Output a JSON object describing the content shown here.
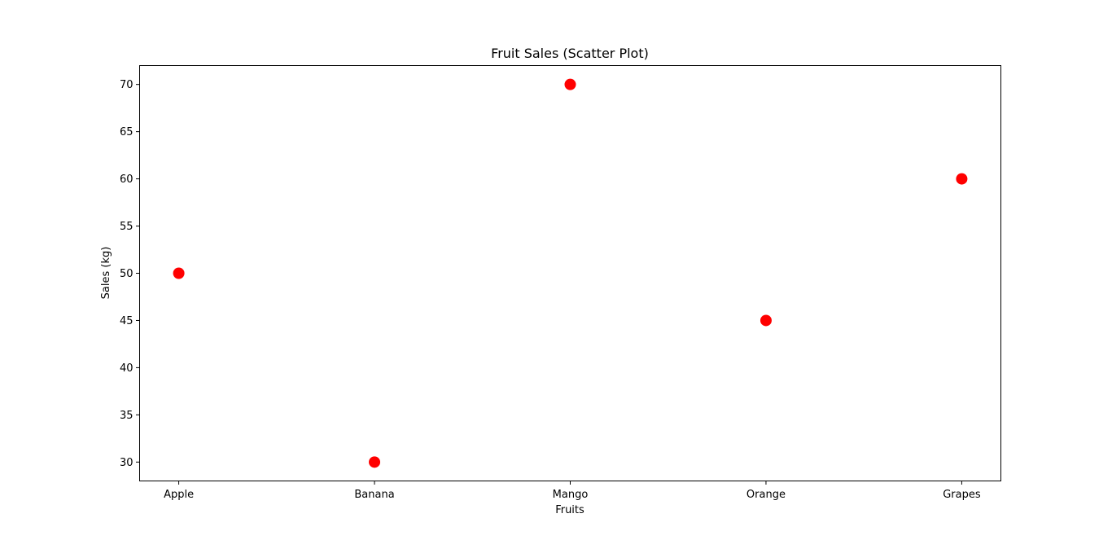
{
  "chart_data": {
    "type": "scatter",
    "title": "Fruit Sales (Scatter Plot)",
    "xlabel": "Fruits",
    "ylabel": "Sales (kg)",
    "categories": [
      "Apple",
      "Banana",
      "Mango",
      "Orange",
      "Grapes"
    ],
    "values": [
      50,
      30,
      70,
      45,
      60
    ],
    "ylim": [
      28,
      72
    ],
    "yticks": [
      30,
      35,
      40,
      45,
      50,
      55,
      60,
      65,
      70
    ],
    "ytick_labels": [
      "30",
      "35",
      "40",
      "45",
      "50",
      "55",
      "60",
      "65",
      "70"
    ],
    "grid": false,
    "legend": "none",
    "marker_color": "#ff0000"
  }
}
